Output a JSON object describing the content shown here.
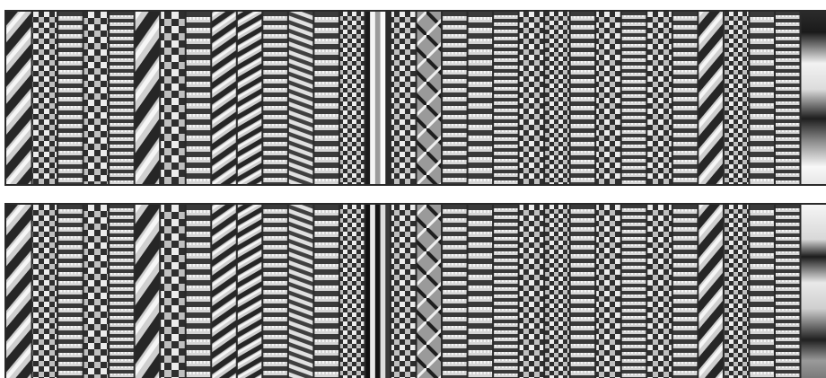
{
  "figure": {
    "background": "#ffffff",
    "border_color": "#2a2a2a",
    "palette": "grayscale",
    "panels": [
      {
        "id": "top",
        "patterns": [
          {
            "kind": "diag",
            "period": 22,
            "angle": 40
          },
          {
            "kind": "check",
            "period": 6
          },
          {
            "kind": "horiz",
            "period": 5
          },
          {
            "kind": "check",
            "period": 7
          },
          {
            "kind": "horiz",
            "period": 4
          },
          {
            "kind": "diag",
            "period": 26,
            "angle": 35
          },
          {
            "kind": "check",
            "period": 8
          },
          {
            "kind": "horiz",
            "period": 6
          },
          {
            "kind": "diag",
            "period": 14,
            "angle": 55
          },
          {
            "kind": "diag",
            "period": 12,
            "angle": 60
          },
          {
            "kind": "horiz",
            "period": 5
          },
          {
            "kind": "wave",
            "period": 9
          },
          {
            "kind": "horiz",
            "period": 6
          },
          {
            "kind": "check",
            "period": 5
          },
          {
            "kind": "vbar",
            "period": 0
          },
          {
            "kind": "check",
            "period": 6
          },
          {
            "kind": "xdiag",
            "period": 26
          },
          {
            "kind": "horiz",
            "period": 5
          },
          {
            "kind": "horiz",
            "period": 6
          },
          {
            "kind": "horiz",
            "period": 4
          },
          {
            "kind": "check",
            "period": 6
          },
          {
            "kind": "check",
            "period": 5
          },
          {
            "kind": "horiz",
            "period": 5
          },
          {
            "kind": "check",
            "period": 6
          },
          {
            "kind": "horiz",
            "period": 4
          },
          {
            "kind": "check",
            "period": 6
          },
          {
            "kind": "horiz",
            "period": 5
          },
          {
            "kind": "diag",
            "period": 20,
            "angle": 40
          },
          {
            "kind": "check",
            "period": 5
          },
          {
            "kind": "horiz",
            "period": 6
          },
          {
            "kind": "horiz",
            "period": 4
          },
          {
            "kind": "blob",
            "period": 70
          }
        ]
      },
      {
        "id": "bottom",
        "patterns": [
          {
            "kind": "diag",
            "period": 22,
            "angle": 40
          },
          {
            "kind": "check",
            "period": 6
          },
          {
            "kind": "horiz",
            "period": 5
          },
          {
            "kind": "check",
            "period": 7
          },
          {
            "kind": "horiz",
            "period": 4
          },
          {
            "kind": "diag",
            "period": 26,
            "angle": 35
          },
          {
            "kind": "check",
            "period": 8
          },
          {
            "kind": "horiz",
            "period": 6
          },
          {
            "kind": "diag",
            "period": 14,
            "angle": 55
          },
          {
            "kind": "diag",
            "period": 12,
            "angle": 60
          },
          {
            "kind": "horiz",
            "period": 5
          },
          {
            "kind": "wave",
            "period": 9
          },
          {
            "kind": "horiz",
            "period": 6
          },
          {
            "kind": "check",
            "period": 5
          },
          {
            "kind": "vbar2",
            "period": 0
          },
          {
            "kind": "check",
            "period": 6
          },
          {
            "kind": "xdiag",
            "period": 26
          },
          {
            "kind": "horiz",
            "period": 5
          },
          {
            "kind": "horiz",
            "period": 6
          },
          {
            "kind": "horiz",
            "period": 4
          },
          {
            "kind": "check",
            "period": 6
          },
          {
            "kind": "check",
            "period": 5
          },
          {
            "kind": "horiz",
            "period": 5
          },
          {
            "kind": "check",
            "period": 6
          },
          {
            "kind": "horiz",
            "period": 4
          },
          {
            "kind": "check",
            "period": 6
          },
          {
            "kind": "horiz",
            "period": 5
          },
          {
            "kind": "diag",
            "period": 20,
            "angle": 40
          },
          {
            "kind": "check",
            "period": 5
          },
          {
            "kind": "horiz",
            "period": 6
          },
          {
            "kind": "horiz",
            "period": 4
          },
          {
            "kind": "blob2",
            "period": 70
          }
        ]
      }
    ]
  }
}
